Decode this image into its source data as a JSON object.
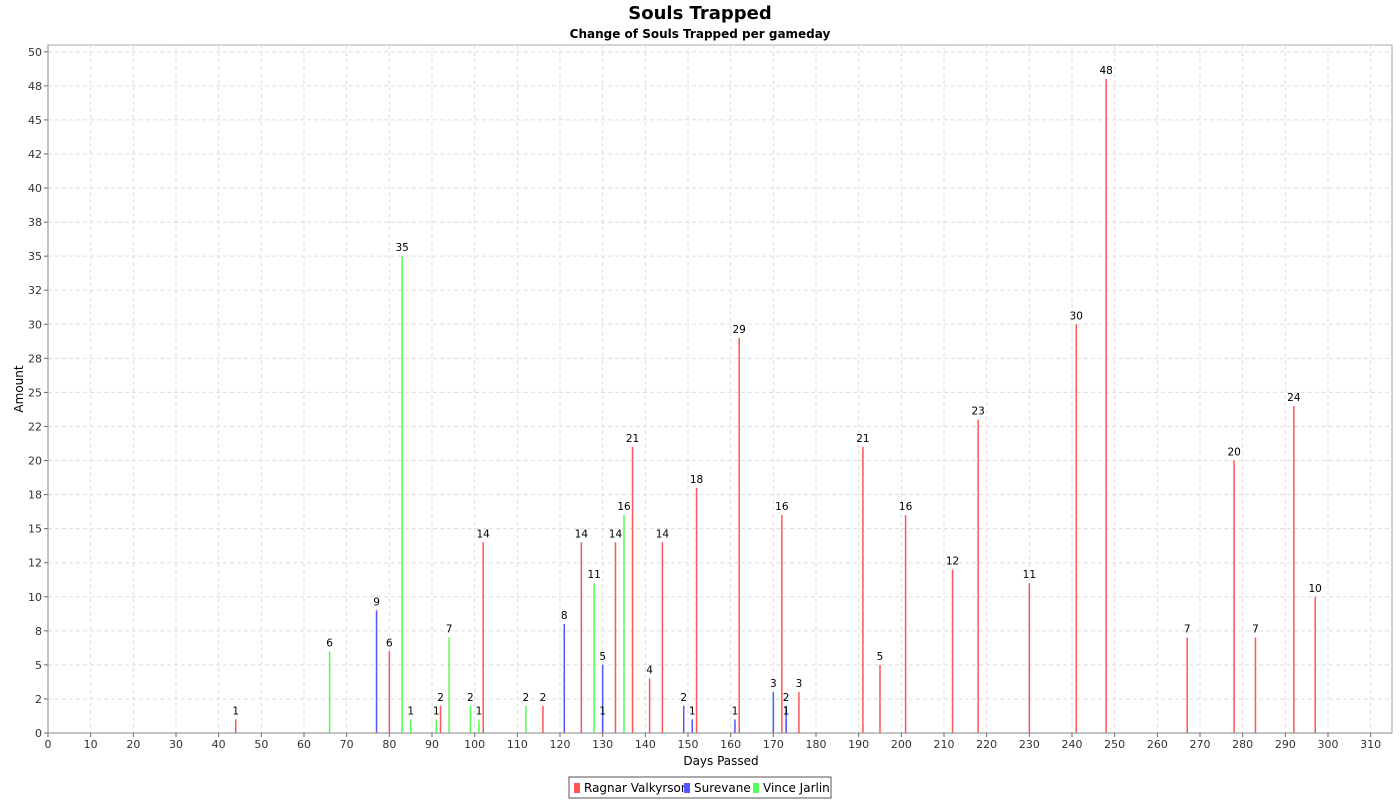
{
  "chart_data": {
    "type": "bar",
    "title": "Souls Trapped",
    "subtitle": "Change of Souls Trapped per gameday",
    "xlabel": "Days Passed",
    "ylabel": "Amount",
    "xlim": [
      0,
      315
    ],
    "ylim": [
      0,
      50.5
    ],
    "x_ticks": [
      0,
      10,
      20,
      30,
      40,
      50,
      60,
      70,
      80,
      90,
      100,
      110,
      120,
      130,
      140,
      150,
      160,
      170,
      180,
      190,
      200,
      210,
      220,
      230,
      240,
      250,
      260,
      270,
      280,
      290,
      300,
      310
    ],
    "y_tick_labels": [
      "0",
      "2",
      "5",
      "8",
      "10",
      "12",
      "15",
      "18",
      "20",
      "22",
      "25",
      "28",
      "30",
      "32",
      "35",
      "38",
      "40",
      "42",
      "45",
      "48",
      "50"
    ],
    "grid": true,
    "legend_position": "bottom",
    "series": [
      {
        "name": "Ragnar Valkyrson",
        "color": "#ff5555",
        "points": [
          {
            "x": 44,
            "y": 1
          },
          {
            "x": 80,
            "y": 6
          },
          {
            "x": 92,
            "y": 2
          },
          {
            "x": 102,
            "y": 14
          },
          {
            "x": 116,
            "y": 2
          },
          {
            "x": 125,
            "y": 14
          },
          {
            "x": 133,
            "y": 14
          },
          {
            "x": 137,
            "y": 21
          },
          {
            "x": 141,
            "y": 4
          },
          {
            "x": 144,
            "y": 14
          },
          {
            "x": 152,
            "y": 18
          },
          {
            "x": 162,
            "y": 29
          },
          {
            "x": 172,
            "y": 16
          },
          {
            "x": 176,
            "y": 3
          },
          {
            "x": 191,
            "y": 21
          },
          {
            "x": 195,
            "y": 5
          },
          {
            "x": 201,
            "y": 16
          },
          {
            "x": 212,
            "y": 12
          },
          {
            "x": 218,
            "y": 23
          },
          {
            "x": 230,
            "y": 11
          },
          {
            "x": 241,
            "y": 30
          },
          {
            "x": 248,
            "y": 48
          },
          {
            "x": 267,
            "y": 7
          },
          {
            "x": 278,
            "y": 20
          },
          {
            "x": 283,
            "y": 7
          },
          {
            "x": 292,
            "y": 24
          },
          {
            "x": 297,
            "y": 10
          }
        ]
      },
      {
        "name": "Surevane",
        "color": "#5555ff",
        "points": [
          {
            "x": 77,
            "y": 9
          },
          {
            "x": 121,
            "y": 8
          },
          {
            "x": 130,
            "y": 5
          },
          {
            "x": 130,
            "y": 1
          },
          {
            "x": 149,
            "y": 2
          },
          {
            "x": 151,
            "y": 1
          },
          {
            "x": 161,
            "y": 1
          },
          {
            "x": 170,
            "y": 3
          },
          {
            "x": 173,
            "y": 2
          },
          {
            "x": 173,
            "y": 1
          }
        ]
      },
      {
        "name": "Vince Jarlin",
        "color": "#55ff55",
        "points": [
          {
            "x": 66,
            "y": 6
          },
          {
            "x": 83,
            "y": 35
          },
          {
            "x": 85,
            "y": 1
          },
          {
            "x": 91,
            "y": 1
          },
          {
            "x": 94,
            "y": 7
          },
          {
            "x": 99,
            "y": 2
          },
          {
            "x": 101,
            "y": 1
          },
          {
            "x": 112,
            "y": 2
          },
          {
            "x": 128,
            "y": 11
          },
          {
            "x": 135,
            "y": 16
          }
        ]
      }
    ]
  }
}
